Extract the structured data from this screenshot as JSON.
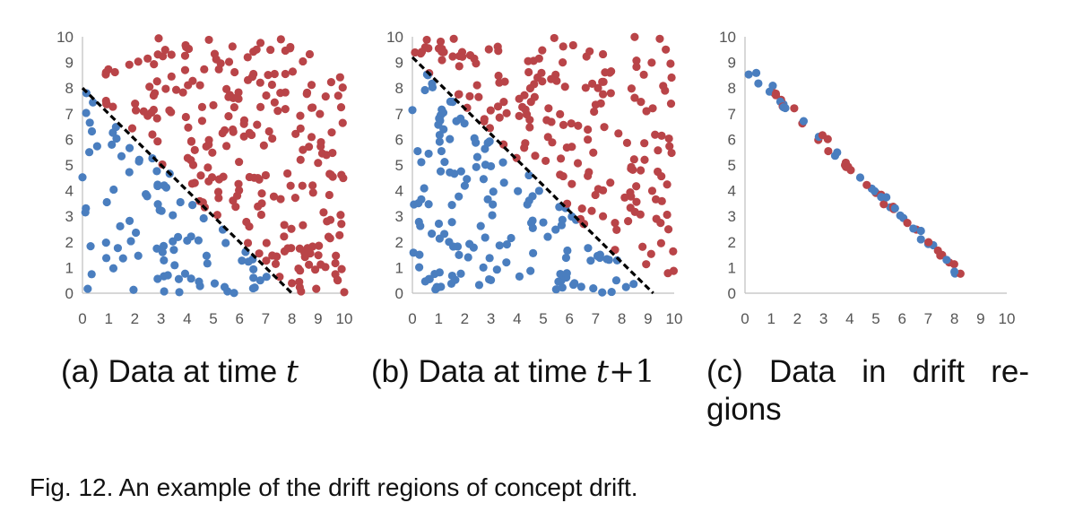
{
  "colors": {
    "blue": "#4a7ebf",
    "red": "#b94448",
    "axis": "#bfbfbf",
    "boundary": "#000000"
  },
  "chart_data": [
    {
      "type": "scatter",
      "xlim": [
        0,
        10
      ],
      "ylim": [
        0,
        10
      ],
      "xticks": [
        "0",
        "1",
        "2",
        "3",
        "4",
        "5",
        "6",
        "7",
        "8",
        "9",
        "10"
      ],
      "yticks": [
        "0",
        "1",
        "2",
        "3",
        "4",
        "5",
        "6",
        "7",
        "8",
        "9",
        "10"
      ],
      "grid": false,
      "boundary": {
        "x1": 0,
        "y1": 8,
        "x2": 8,
        "y2": 0,
        "style": "dashed"
      },
      "caption_prefix": "(a) Data at time ",
      "caption_var": "t",
      "caption_suffix": ""
    },
    {
      "type": "scatter",
      "xlim": [
        0,
        10
      ],
      "ylim": [
        0,
        10
      ],
      "xticks": [
        "0",
        "1",
        "2",
        "3",
        "4",
        "5",
        "6",
        "7",
        "8",
        "9",
        "10"
      ],
      "yticks": [
        "0",
        "1",
        "2",
        "3",
        "4",
        "5",
        "6",
        "7",
        "8",
        "9",
        "10"
      ],
      "grid": false,
      "boundary": {
        "x1": 0,
        "y1": 9.2,
        "x2": 9.2,
        "y2": 0,
        "style": "dashed"
      },
      "caption_prefix": "(b) Data at time ",
      "caption_var": "t",
      "caption_suffix": "+1"
    },
    {
      "type": "scatter",
      "xlim": [
        0,
        10
      ],
      "ylim": [
        0,
        10
      ],
      "xticks": [
        "0",
        "1",
        "2",
        "3",
        "4",
        "5",
        "6",
        "7",
        "8",
        "9",
        "10"
      ],
      "yticks": [
        "0",
        "1",
        "2",
        "3",
        "4",
        "5",
        "6",
        "7",
        "8",
        "9",
        "10"
      ],
      "grid": false,
      "boundary": null,
      "caption_prefix": "(c) Data in drift re-",
      "caption_line2": "gions",
      "band": {
        "from": [
          0.2,
          8.7
        ],
        "to": [
          8.8,
          0.2
        ],
        "width": 0.3
      }
    }
  ],
  "figure_caption": "Fig. 12. An example of the drift regions of concept drift."
}
